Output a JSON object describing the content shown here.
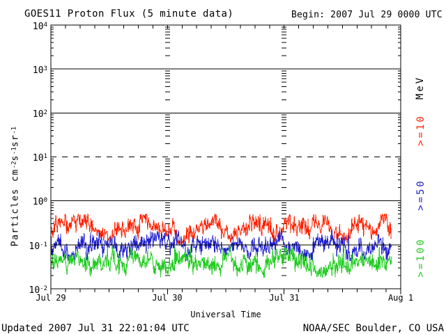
{
  "chart_data": {
    "type": "line",
    "title": "GOES11 Proton Flux (5 minute data)",
    "begin_label": "Begin: 2007 Jul 29 0000 UTC",
    "xlabel": "Universal Time",
    "ylabel_parts": {
      "p0": "Particles cm",
      "s0": "-2",
      "p1": "s",
      "s1": "-1",
      "p2": "sr",
      "s2": "-1"
    },
    "y_scale": "log",
    "ylim": [
      0.01,
      10000
    ],
    "y_tick_base": "10",
    "y_tick_sups": [
      "4",
      "3",
      "2",
      "1",
      "0",
      "-1",
      "-2"
    ],
    "y_tick_exponents": [
      4,
      3,
      2,
      1,
      0,
      -1,
      -2
    ],
    "x_tick_labels": [
      "Jul 29",
      "Jul 30",
      "Jul 31",
      "Aug 1"
    ],
    "x_range_hours": 72,
    "x_minor_tick_hours": 3,
    "x_major_tick_hours": 24,
    "grid": {
      "solid_gridline_exponents": [
        3,
        2,
        0,
        -1
      ],
      "dashed_gridline_exponents": [
        1
      ],
      "dotted_day_column_hours": [
        24,
        48
      ]
    },
    "legend_unit": "MeV",
    "legend_text_color": "#000000",
    "series": [
      {
        "name": ">=10 MeV",
        "label": ">=10",
        "color": "#ff2200",
        "approx_flux": {
          "center": 0.22,
          "min": 0.11,
          "max": 0.46
        }
      },
      {
        "name": ">=50 MeV",
        "label": ">=50",
        "color": "#2222cc",
        "approx_flux": {
          "center": 0.09,
          "min": 0.045,
          "max": 0.2
        }
      },
      {
        "name": ">=100 MeV",
        "label": ">=100",
        "color": "#22cc22",
        "approx_flux": {
          "center": 0.04,
          "min": 0.019,
          "max": 0.085
        }
      }
    ],
    "data_end_hours": 70.1
  },
  "footer": {
    "updated": "Updated 2007 Jul 31 22:01:04 UTC",
    "source": "NOAA/SEC Boulder, CO USA"
  }
}
